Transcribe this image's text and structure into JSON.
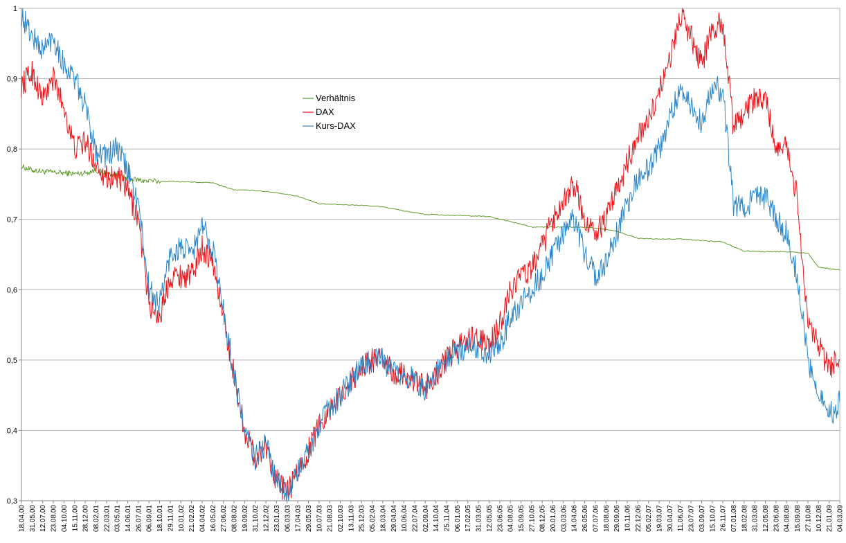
{
  "chart_data": {
    "type": "line",
    "title": "",
    "xlabel": "",
    "ylabel": "",
    "ylim": [
      0.3,
      1.0
    ],
    "y_ticks": [
      "0,3",
      "0,4",
      "0,5",
      "0,6",
      "0,7",
      "0,8",
      "0,9",
      "1"
    ],
    "grid": "horizontal",
    "legend_placement": "top-center",
    "x_tick_labels": [
      "18.04.00",
      "31.05.00",
      "12.07.00",
      "23.08.00",
      "04.10.00",
      "15.11.00",
      "28.12.00",
      "08.02.01",
      "22.03.01",
      "03.05.01",
      "14.06.01",
      "26.07.01",
      "06.09.01",
      "18.10.01",
      "29.11.01",
      "10.01.02",
      "21.02.02",
      "04.04.02",
      "16.05.02",
      "27.06.02",
      "08.08.02",
      "19.09.02",
      "31.10.02",
      "12.12.02",
      "23.01.03",
      "06.03.03",
      "17.04.03",
      "29.05.03",
      "10.07.03",
      "21.08.03",
      "02.10.03",
      "13.11.03",
      "25.12.03",
      "05.02.04",
      "18.03.04",
      "29.04.04",
      "10.06.04",
      "22.07.04",
      "02.09.04",
      "14.10.04",
      "25.11.04",
      "06.01.05",
      "17.02.05",
      "31.03.05",
      "12.05.05",
      "23.06.05",
      "04.08.05",
      "15.09.05",
      "27.10.05",
      "08.12.05",
      "20.01.06",
      "03.03.06",
      "14.04.06",
      "26.05.06",
      "07.07.06",
      "18.08.06",
      "29.09.06",
      "10.11.06",
      "22.12.06",
      "05.02.07",
      "19.03.07",
      "30.04.07",
      "11.06.07",
      "23.07.07",
      "03.09.07",
      "15.10.07",
      "26.11.07",
      "07.01.08",
      "18.02.08",
      "31.03.08",
      "12.05.08",
      "23.06.08",
      "04.08.08",
      "15.09.08",
      "27.10.08",
      "10.12.08",
      "21.01.09",
      "04.03.09"
    ],
    "series": [
      {
        "name": "Verhältnis",
        "color": "#5e9b2a",
        "x": [
          0,
          1,
          2,
          3,
          4,
          5,
          6,
          7,
          8,
          9,
          10,
          11,
          12,
          14,
          16,
          18,
          20,
          22,
          24,
          26,
          28,
          30,
          32,
          34,
          36,
          38,
          40,
          42,
          44,
          46,
          48,
          50,
          52,
          54,
          56,
          58,
          60,
          62,
          64,
          66,
          68,
          70,
          72,
          74,
          75,
          76,
          77
        ],
        "values": [
          0.775,
          0.77,
          0.768,
          0.767,
          0.766,
          0.765,
          0.766,
          0.77,
          0.765,
          0.763,
          0.758,
          0.756,
          0.754,
          0.754,
          0.753,
          0.752,
          0.742,
          0.741,
          0.738,
          0.733,
          0.722,
          0.721,
          0.72,
          0.718,
          0.712,
          0.707,
          0.706,
          0.705,
          0.704,
          0.697,
          0.689,
          0.689,
          0.689,
          0.688,
          0.683,
          0.673,
          0.672,
          0.672,
          0.67,
          0.668,
          0.655,
          0.654,
          0.654,
          0.652,
          0.632,
          0.63,
          0.628
        ]
      },
      {
        "name": "DAX",
        "color": "#e8141a",
        "x": [
          0,
          1,
          2,
          3,
          4,
          5,
          6,
          7,
          8,
          9,
          10,
          11,
          12,
          13,
          14,
          15,
          16,
          17,
          18,
          19,
          20,
          21,
          22,
          23,
          24,
          25,
          26,
          27,
          28,
          29,
          30,
          31,
          32,
          33,
          34,
          35,
          36,
          37,
          38,
          39,
          40,
          41,
          42,
          43,
          44,
          45,
          46,
          47,
          48,
          49,
          50,
          51,
          52,
          53,
          54,
          55,
          56,
          57,
          58,
          59,
          60,
          61,
          62,
          63,
          64,
          65,
          66,
          67,
          68,
          69,
          70,
          71,
          72,
          73,
          74,
          75,
          76,
          77
        ],
        "values": [
          0.89,
          0.91,
          0.87,
          0.9,
          0.86,
          0.8,
          0.81,
          0.78,
          0.76,
          0.76,
          0.74,
          0.7,
          0.58,
          0.56,
          0.62,
          0.62,
          0.62,
          0.66,
          0.64,
          0.56,
          0.48,
          0.4,
          0.36,
          0.38,
          0.33,
          0.31,
          0.34,
          0.37,
          0.41,
          0.43,
          0.45,
          0.47,
          0.49,
          0.5,
          0.5,
          0.48,
          0.48,
          0.47,
          0.46,
          0.48,
          0.5,
          0.52,
          0.53,
          0.53,
          0.52,
          0.55,
          0.6,
          0.62,
          0.63,
          0.66,
          0.7,
          0.73,
          0.75,
          0.7,
          0.68,
          0.7,
          0.74,
          0.78,
          0.82,
          0.84,
          0.88,
          0.93,
          0.99,
          0.96,
          0.92,
          0.97,
          0.98,
          0.83,
          0.85,
          0.87,
          0.87,
          0.8,
          0.8,
          0.73,
          0.55,
          0.52,
          0.49,
          0.5
        ]
      },
      {
        "name": "Kurs-DAX",
        "color": "#2a86c8",
        "x": [
          0,
          1,
          2,
          3,
          4,
          5,
          6,
          7,
          8,
          9,
          10,
          11,
          12,
          13,
          14,
          15,
          16,
          17,
          18,
          19,
          20,
          21,
          22,
          23,
          24,
          25,
          26,
          27,
          28,
          29,
          30,
          31,
          32,
          33,
          34,
          35,
          36,
          37,
          38,
          39,
          40,
          41,
          42,
          43,
          44,
          45,
          46,
          47,
          48,
          49,
          50,
          51,
          52,
          53,
          54,
          55,
          56,
          57,
          58,
          59,
          60,
          61,
          62,
          63,
          64,
          65,
          66,
          67,
          68,
          69,
          70,
          71,
          72,
          73,
          74,
          75,
          76,
          77
        ],
        "values": [
          0.99,
          0.96,
          0.94,
          0.96,
          0.92,
          0.9,
          0.86,
          0.8,
          0.79,
          0.8,
          0.77,
          0.72,
          0.6,
          0.58,
          0.65,
          0.66,
          0.65,
          0.69,
          0.66,
          0.57,
          0.48,
          0.4,
          0.36,
          0.38,
          0.33,
          0.31,
          0.34,
          0.37,
          0.41,
          0.43,
          0.45,
          0.47,
          0.49,
          0.5,
          0.5,
          0.48,
          0.48,
          0.47,
          0.46,
          0.48,
          0.5,
          0.51,
          0.52,
          0.52,
          0.51,
          0.52,
          0.56,
          0.58,
          0.6,
          0.62,
          0.65,
          0.68,
          0.7,
          0.65,
          0.62,
          0.64,
          0.68,
          0.72,
          0.76,
          0.77,
          0.8,
          0.84,
          0.89,
          0.86,
          0.84,
          0.89,
          0.88,
          0.72,
          0.72,
          0.73,
          0.73,
          0.7,
          0.68,
          0.62,
          0.5,
          0.46,
          0.42,
          0.44
        ]
      }
    ]
  }
}
